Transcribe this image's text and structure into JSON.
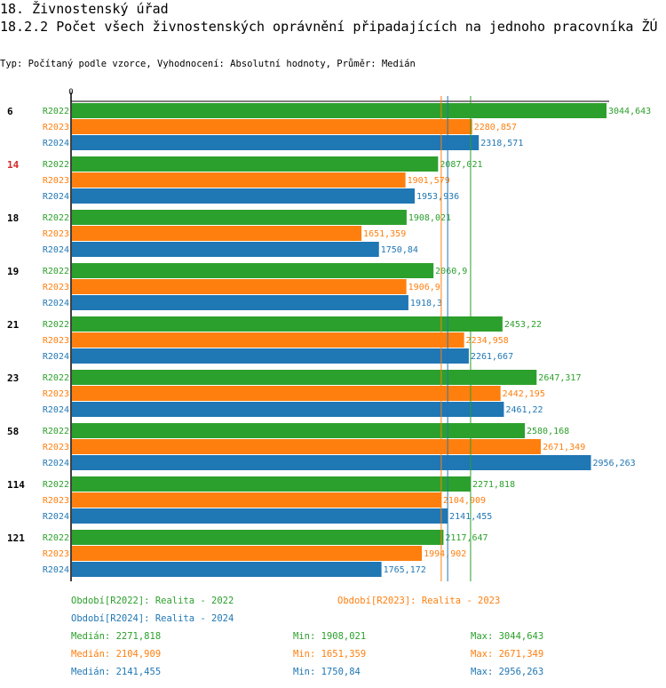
{
  "header": {
    "title": "18. Živnostenský úřad",
    "subtitle": "18.2.2 Počet všech živnostenských oprávnění připadajících na jednoho pracovníka ŽÚ",
    "meta": "Typ: Počítaný podle vzorce, Vyhodnocení: Absolutní hodnoty, Průměr: Medián"
  },
  "chart_data": {
    "type": "bar",
    "orientation": "horizontal",
    "axis_zero_label": "0",
    "xlim": [
      0,
      3050
    ],
    "categories": [
      "6",
      "14",
      "18",
      "19",
      "21",
      "23",
      "58",
      "114",
      "121"
    ],
    "highlight_category": "14",
    "series": [
      {
        "name": "R2022",
        "color": "#2ca02c",
        "values": [
          3044.643,
          2087.021,
          1908.021,
          2060.9,
          2453.22,
          2647.317,
          2580.168,
          2271.818,
          2117.647
        ],
        "labels": [
          "3044,643",
          "2087,021",
          "1908,021",
          "2060,9",
          "2453,22",
          "2647,317",
          "2580,168",
          "2271,818",
          "2117,647"
        ]
      },
      {
        "name": "R2023",
        "color": "#ff7f0e",
        "values": [
          2280.857,
          1901.579,
          1651.359,
          1906.9,
          2234.958,
          2442.195,
          2671.349,
          2104.909,
          1994.902
        ],
        "labels": [
          "2280,857",
          "1901,579",
          "1651,359",
          "1906,9",
          "2234,958",
          "2442,195",
          "2671,349",
          "2104,909",
          "1994,902"
        ]
      },
      {
        "name": "R2024",
        "color": "#1f77b4",
        "values": [
          2318.571,
          1953.936,
          1750.84,
          1918.3,
          2261.667,
          2461.22,
          2956.263,
          2141.455,
          1765.172
        ],
        "labels": [
          "2318,571",
          "1953,936",
          "1750,84",
          "1918,3",
          "2261,667",
          "2461,22",
          "2956,263",
          "2141,455",
          "1765,172"
        ]
      }
    ],
    "median_lines": {
      "R2022": 2271.818,
      "R2023": 2104.909,
      "R2024": 2141.455
    }
  },
  "legend": {
    "r2022": "Období[R2022]: Realita - 2022",
    "r2023": "Období[R2023]: Realita - 2023",
    "r2024": "Období[R2024]: Realita - 2024"
  },
  "stats": {
    "r2022": {
      "median": "Medián: 2271,818",
      "min": "Min: 1908,021",
      "max": "Max: 3044,643"
    },
    "r2023": {
      "median": "Medián: 2104,909",
      "min": "Min: 1651,359",
      "max": "Max: 2671,349"
    },
    "r2024": {
      "median": "Medián: 2141,455",
      "min": "Min: 1750,84",
      "max": "Max: 2956,263"
    }
  },
  "colors": {
    "r2022": "#2ca02c",
    "r2023": "#ff7f0e",
    "r2024": "#1f77b4",
    "highlight": "#d62728"
  }
}
